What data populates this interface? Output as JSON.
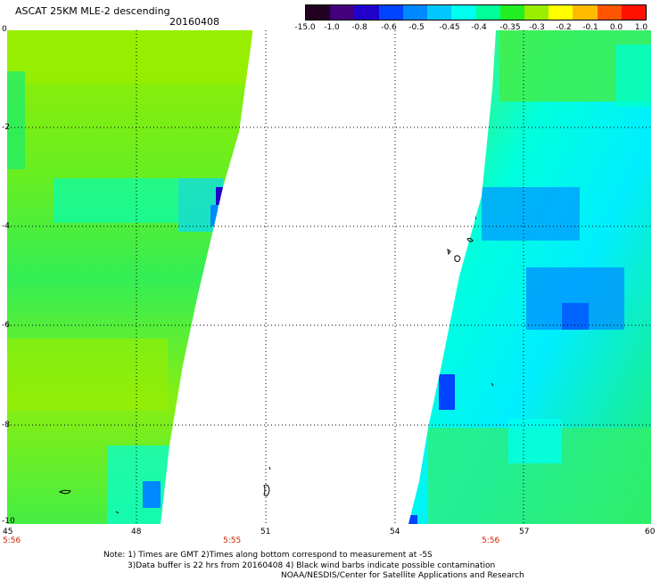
{
  "header": {
    "title": "ASCAT 25KM MLE-2 descending",
    "date": "20160408"
  },
  "colorbar": {
    "ticks": [
      "-15.0",
      "-1.0",
      "-0.8",
      "-0.6",
      "-0.5",
      "-0.45",
      "-0.4",
      "-0.35",
      "-0.3",
      "-0.2",
      "-0.1",
      "0.0",
      "1.0"
    ],
    "colors": [
      "#220022",
      "#44007a",
      "#2200cc",
      "#0044ff",
      "#0088ff",
      "#00c8ff",
      "#00ffee",
      "#00ff99",
      "#22ee22",
      "#99ee00",
      "#ffff00",
      "#ffbb00",
      "#ff5500",
      "#ff1100"
    ]
  },
  "axes": {
    "x_ticks": [
      "45",
      "48",
      "51",
      "54",
      "57",
      "60"
    ],
    "y_ticks": [
      "0",
      "-2",
      "-4",
      "-6",
      "-8",
      "-10"
    ]
  },
  "times": [
    "5:56",
    "5:55",
    "5:56"
  ],
  "notes": {
    "line1": "Note: 1) Times are GMT 2)Times along bottom correspond to measurement at -5S",
    "line2": "3)Data buffer is 22 hrs from 20160408 4) Black wind barbs indicate possible contamination",
    "line3": "NOAA/NESDIS/Center for Satellite Applications and Research"
  }
}
